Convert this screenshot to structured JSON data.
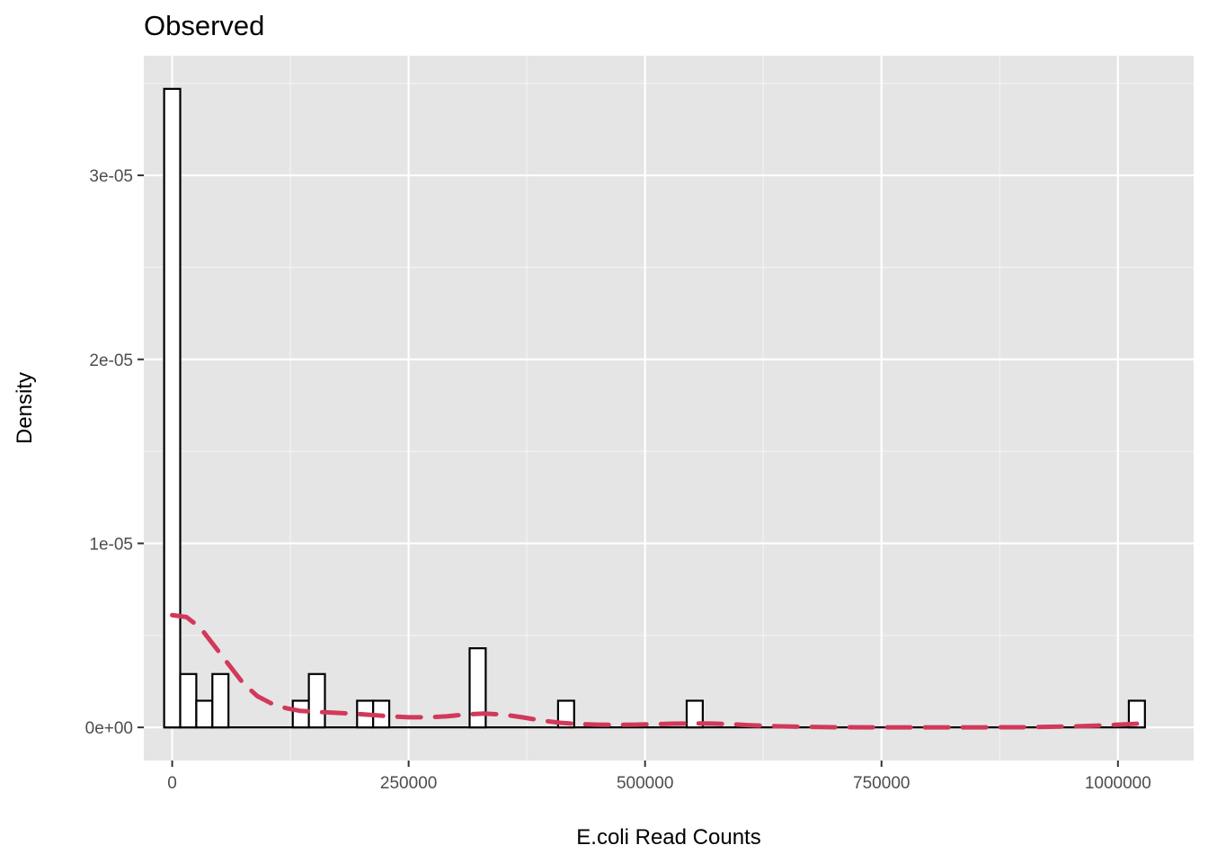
{
  "chart_data": {
    "type": "bar",
    "title": "Observed",
    "xlabel": "E.coli Read Counts",
    "ylabel": "Density",
    "xlim": [
      -30000,
      1080000
    ],
    "ylim": [
      -1.8e-06,
      3.65e-05
    ],
    "x_ticks": [
      0,
      250000,
      500000,
      750000,
      1000000
    ],
    "x_tick_labels": [
      "0",
      "250000",
      "500000",
      "750000",
      "1000000"
    ],
    "y_ticks": [
      0,
      1e-05,
      2e-05,
      3e-05
    ],
    "y_tick_labels": [
      "0e+00",
      "1e-05",
      "2e-05",
      "3e-05"
    ],
    "grid": true,
    "legend": "none",
    "bin_width": 17000,
    "histogram": {
      "name": "histogram",
      "bins": [
        {
          "x0": -8500,
          "x1": 8500,
          "density": 3.47e-05
        },
        {
          "x0": 8500,
          "x1": 25500,
          "density": 2.9e-06
        },
        {
          "x0": 25500,
          "x1": 42500,
          "density": 1.45e-06
        },
        {
          "x0": 42500,
          "x1": 59500,
          "density": 2.9e-06
        },
        {
          "x0": 127500,
          "x1": 144500,
          "density": 1.45e-06
        },
        {
          "x0": 144500,
          "x1": 161500,
          "density": 2.9e-06
        },
        {
          "x0": 195500,
          "x1": 212500,
          "density": 1.45e-06
        },
        {
          "x0": 212500,
          "x1": 229500,
          "density": 1.45e-06
        },
        {
          "x0": 314500,
          "x1": 331500,
          "density": 4.3e-06
        },
        {
          "x0": 408000,
          "x1": 425000,
          "density": 1.45e-06
        },
        {
          "x0": 544000,
          "x1": 561000,
          "density": 1.45e-06
        },
        {
          "x0": 1011500,
          "x1": 1028500,
          "density": 1.45e-06
        }
      ],
      "fill": "#ffffff",
      "stroke": "#000000"
    },
    "density_curve": {
      "name": "density",
      "color": "#d1395b",
      "style": "dashed",
      "x": [
        0,
        15000,
        30000,
        45000,
        60000,
        75000,
        90000,
        105000,
        120000,
        135000,
        150000,
        170000,
        190000,
        210000,
        230000,
        250000,
        270000,
        290000,
        310000,
        330000,
        350000,
        370000,
        390000,
        410000,
        430000,
        450000,
        470000,
        490000,
        510000,
        530000,
        550000,
        570000,
        590000,
        610000,
        640000,
        670000,
        700000,
        750000,
        800000,
        850000,
        900000,
        950000,
        980000,
        1000000,
        1020000
      ],
      "y": [
        6.1e-06,
        6e-06,
        5.4e-06,
        4.4e-06,
        3.4e-06,
        2.4e-06,
        1.7e-06,
        1.3e-06,
        1.05e-06,
        9e-07,
        8.5e-07,
        8e-07,
        7.5e-07,
        6.8e-07,
        6e-07,
        5.5e-07,
        5.5e-07,
        6e-07,
        7e-07,
        7.5e-07,
        7e-07,
        5.5e-07,
        3.8e-07,
        2.5e-07,
        1.8e-07,
        1.5e-07,
        1.4e-07,
        1.5e-07,
        1.8e-07,
        2e-07,
        2.2e-07,
        2.1e-07,
        1.8e-07,
        1.2e-07,
        6e-08,
        3e-08,
        1e-08,
        0,
        0,
        0,
        1e-08,
        5e-08,
        1e-07,
        1.5e-07,
        2e-07
      ]
    }
  }
}
